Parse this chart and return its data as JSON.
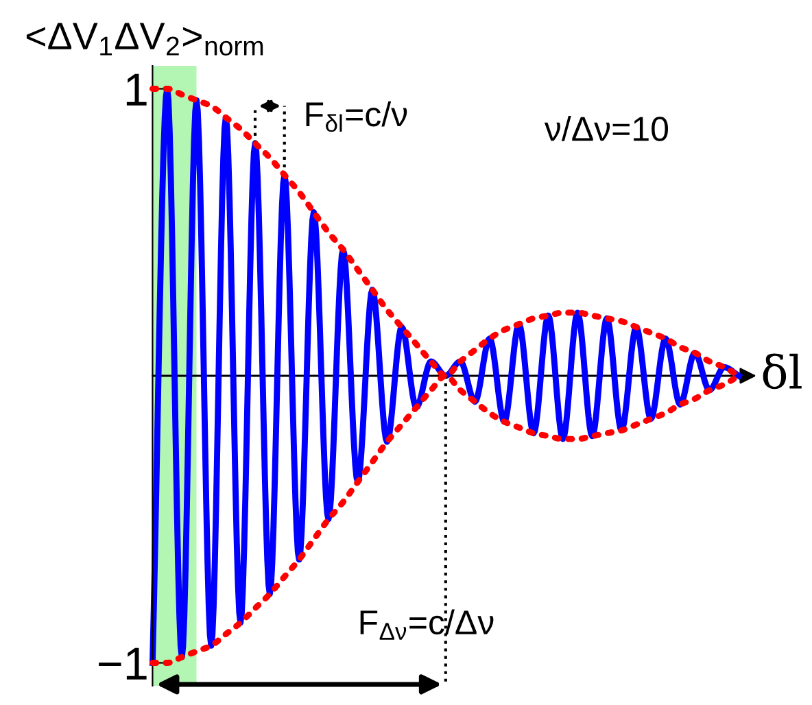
{
  "chart_data": {
    "type": "line",
    "ylabel": "<ΔV$_{1}$ΔV$_{2}$>$_{norm}$",
    "xlabel": "δl",
    "categories": [
      null,
      null,
      null,
      null,
      null,
      null,
      null,
      null,
      null,
      null,
      null,
      null,
      null,
      null,
      null,
      null,
      null,
      null,
      null,
      null,
      null,
      null,
      null,
      null,
      null,
      null,
      null,
      null,
      null,
      null,
      null,
      null,
      null,
      null,
      null,
      null,
      null,
      null,
      null,
      null,
      null
    ],
    "series": [
      {
        "color": "#0000ff",
        "line_style": "solid",
        "values": [
          -1.0,
          1.0,
          -0.98,
          0.96,
          -0.94,
          0.9,
          -0.86,
          0.81,
          -0.76,
          0.7,
          -0.64,
          0.57,
          -0.5,
          0.44,
          -0.37,
          0.3,
          -0.23,
          0.17,
          -0.11,
          0.05,
          0.0,
          0.05,
          -0.09,
          0.13,
          -0.16,
          0.18,
          -0.2,
          0.21,
          -0.22,
          0.22,
          -0.21,
          0.2,
          -0.19,
          0.17,
          -0.15,
          0.13,
          -0.1,
          0.08,
          -0.05,
          0.03,
          0.0
        ]
      },
      {
        "color": "#ff0000",
        "line_style": "dotted",
        "values": [
          1.0,
          1.0,
          0.98,
          0.96,
          0.94,
          0.9,
          0.86,
          0.81,
          0.76,
          0.7,
          0.64,
          0.57,
          0.5,
          0.44,
          0.37,
          0.3,
          0.23,
          0.17,
          0.11,
          0.05,
          0.0,
          0.05,
          0.09,
          0.13,
          0.16,
          0.18,
          0.2,
          0.21,
          0.22,
          0.22,
          0.21,
          0.2,
          0.19,
          0.17,
          0.15,
          0.13,
          0.1,
          0.08,
          0.05,
          0.03,
          0.0
        ]
      },
      {
        "color": "#ff0000",
        "line_style": "dotted",
        "values": [
          -1.0,
          -1.0,
          -0.98,
          -0.96,
          -0.94,
          -0.9,
          -0.86,
          -0.81,
          -0.76,
          -0.7,
          -0.64,
          -0.57,
          -0.5,
          -0.44,
          -0.37,
          -0.3,
          -0.23,
          -0.17,
          -0.11,
          -0.05,
          0.0,
          -0.05,
          -0.09,
          -0.13,
          -0.16,
          -0.18,
          -0.2,
          -0.21,
          -0.22,
          -0.22,
          -0.21,
          -0.2,
          -0.19,
          -0.17,
          -0.15,
          -0.13,
          -0.1,
          -0.08,
          -0.05,
          -0.03,
          0.0
        ]
      }
    ],
    "ylim": [
      -1.08,
      1.08
    ],
    "yticks": [
      {
        "value": 1,
        "label": "1"
      },
      {
        "value": -1,
        "label": "−1"
      }
    ],
    "annotations": [
      "F$_{δl}$=c/ν",
      "ν/Δν=10",
      "F$_{Δν}$=c/Δν"
    ],
    "grid": false,
    "legend": false,
    "marker": "none"
  }
}
